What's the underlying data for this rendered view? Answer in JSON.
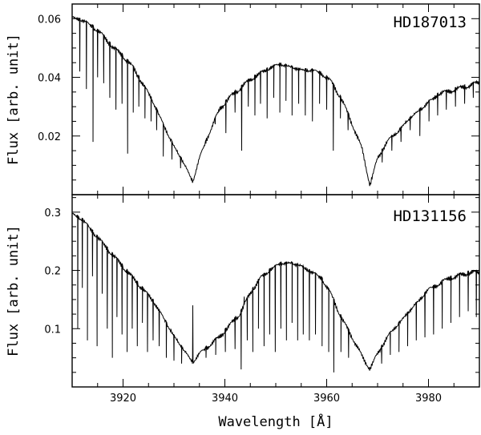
{
  "chart_data": [
    {
      "type": "line",
      "title": "HD187013",
      "xlabel": "",
      "ylabel": "Flux [arb. unit]",
      "xlim": [
        3910,
        3990
      ],
      "ylim": [
        0.0,
        0.065
      ],
      "xticks": [
        3920,
        3940,
        3960,
        3980
      ],
      "xtick_labels": [],
      "yticks": [
        0.02,
        0.04,
        0.06
      ],
      "ytick_labels": [
        "0.02",
        "0.04",
        "0.06"
      ],
      "grid": false,
      "series": [
        {
          "x": [
            3910,
            3912,
            3914,
            3916,
            3918,
            3920,
            3922,
            3924,
            3926,
            3928,
            3930,
            3932,
            3933.7,
            3935,
            3937,
            3939,
            3941,
            3943,
            3945,
            3947,
            3949,
            3951,
            3953,
            3955,
            3957,
            3959,
            3961,
            3963,
            3965,
            3967,
            3968.5,
            3970,
            3972,
            3974,
            3976,
            3978,
            3980,
            3982,
            3984,
            3986,
            3988,
            3990
          ],
          "y": [
            0.061,
            0.06,
            0.058,
            0.055,
            0.051,
            0.048,
            0.044,
            0.038,
            0.032,
            0.024,
            0.017,
            0.011,
            0.005,
            0.013,
            0.022,
            0.03,
            0.034,
            0.037,
            0.04,
            0.042,
            0.044,
            0.045,
            0.044,
            0.043,
            0.043,
            0.042,
            0.039,
            0.033,
            0.025,
            0.016,
            0.004,
            0.013,
            0.019,
            0.022,
            0.026,
            0.029,
            0.032,
            0.035,
            0.036,
            0.037,
            0.038,
            0.039
          ]
        }
      ],
      "absorption_lines": [
        {
          "x": 3911.5,
          "y": 0.042
        },
        {
          "x": 3912.8,
          "y": 0.036
        },
        {
          "x": 3914.1,
          "y": 0.018
        },
        {
          "x": 3915.0,
          "y": 0.04
        },
        {
          "x": 3916.2,
          "y": 0.038
        },
        {
          "x": 3917.4,
          "y": 0.033
        },
        {
          "x": 3918.6,
          "y": 0.029
        },
        {
          "x": 3919.8,
          "y": 0.031
        },
        {
          "x": 3920.9,
          "y": 0.014
        },
        {
          "x": 3922.0,
          "y": 0.028
        },
        {
          "x": 3923.1,
          "y": 0.03
        },
        {
          "x": 3924.3,
          "y": 0.026
        },
        {
          "x": 3925.5,
          "y": 0.025
        },
        {
          "x": 3926.6,
          "y": 0.022
        },
        {
          "x": 3927.9,
          "y": 0.013
        },
        {
          "x": 3929.6,
          "y": 0.012
        },
        {
          "x": 3931.3,
          "y": 0.009
        },
        {
          "x": 3936.3,
          "y": 0.018
        },
        {
          "x": 3938.1,
          "y": 0.024
        },
        {
          "x": 3940.2,
          "y": 0.021
        },
        {
          "x": 3942.0,
          "y": 0.028
        },
        {
          "x": 3943.3,
          "y": 0.015
        },
        {
          "x": 3944.6,
          "y": 0.03
        },
        {
          "x": 3945.9,
          "y": 0.027
        },
        {
          "x": 3947.0,
          "y": 0.031
        },
        {
          "x": 3948.3,
          "y": 0.026
        },
        {
          "x": 3949.6,
          "y": 0.033
        },
        {
          "x": 3950.8,
          "y": 0.028
        },
        {
          "x": 3952.0,
          "y": 0.032
        },
        {
          "x": 3953.2,
          "y": 0.027
        },
        {
          "x": 3954.5,
          "y": 0.031
        },
        {
          "x": 3955.8,
          "y": 0.027
        },
        {
          "x": 3957.2,
          "y": 0.025
        },
        {
          "x": 3958.6,
          "y": 0.031
        },
        {
          "x": 3960.0,
          "y": 0.029
        },
        {
          "x": 3961.3,
          "y": 0.015
        },
        {
          "x": 3962.7,
          "y": 0.026
        },
        {
          "x": 3964.2,
          "y": 0.022
        },
        {
          "x": 3970.9,
          "y": 0.011
        },
        {
          "x": 3972.8,
          "y": 0.015
        },
        {
          "x": 3974.6,
          "y": 0.018
        },
        {
          "x": 3976.4,
          "y": 0.022
        },
        {
          "x": 3978.3,
          "y": 0.02
        },
        {
          "x": 3980.1,
          "y": 0.025
        },
        {
          "x": 3981.8,
          "y": 0.027
        },
        {
          "x": 3983.5,
          "y": 0.029
        },
        {
          "x": 3985.3,
          "y": 0.03
        },
        {
          "x": 3987.1,
          "y": 0.031
        },
        {
          "x": 3988.8,
          "y": 0.033
        }
      ]
    },
    {
      "type": "line",
      "title": "HD131156",
      "xlabel": "Wavelength [Å]",
      "ylabel": "Flux [arb. unit]",
      "xlim": [
        3910,
        3990
      ],
      "ylim": [
        0.0,
        0.33
      ],
      "xticks": [
        3920,
        3940,
        3960,
        3980
      ],
      "xtick_labels": [
        "3920",
        "3940",
        "3960",
        "3980"
      ],
      "yticks": [
        0.1,
        0.2,
        0.3
      ],
      "ytick_labels": [
        "0.1",
        "0.2",
        "0.3"
      ],
      "grid": false,
      "series": [
        {
          "x": [
            3910,
            3912,
            3914,
            3916,
            3918,
            3920,
            3922,
            3924,
            3926,
            3928,
            3930,
            3932,
            3933.7,
            3935,
            3937,
            3939,
            3941,
            3943,
            3945,
            3947,
            3949,
            3951,
            3953,
            3955,
            3957,
            3959,
            3961,
            3963,
            3965,
            3967,
            3968.5,
            3970,
            3972,
            3974,
            3976,
            3978,
            3980,
            3982,
            3984,
            3986,
            3988,
            3990
          ],
          "y": [
            0.3,
            0.29,
            0.27,
            0.25,
            0.23,
            0.21,
            0.19,
            0.17,
            0.15,
            0.12,
            0.09,
            0.065,
            0.045,
            0.06,
            0.075,
            0.09,
            0.11,
            0.13,
            0.165,
            0.19,
            0.205,
            0.215,
            0.215,
            0.21,
            0.2,
            0.19,
            0.16,
            0.12,
            0.09,
            0.055,
            0.035,
            0.06,
            0.09,
            0.11,
            0.13,
            0.15,
            0.17,
            0.18,
            0.19,
            0.195,
            0.2,
            0.2
          ]
        }
      ],
      "absorption_lines": [
        {
          "x": 3911.1,
          "y": 0.1
        },
        {
          "x": 3912.0,
          "y": 0.17
        },
        {
          "x": 3913.0,
          "y": 0.08
        },
        {
          "x": 3914.0,
          "y": 0.19
        },
        {
          "x": 3914.9,
          "y": 0.07
        },
        {
          "x": 3915.9,
          "y": 0.16
        },
        {
          "x": 3916.9,
          "y": 0.1
        },
        {
          "x": 3917.9,
          "y": 0.05
        },
        {
          "x": 3918.8,
          "y": 0.12
        },
        {
          "x": 3919.8,
          "y": 0.09
        },
        {
          "x": 3920.8,
          "y": 0.06
        },
        {
          "x": 3921.8,
          "y": 0.1
        },
        {
          "x": 3922.8,
          "y": 0.07
        },
        {
          "x": 3923.8,
          "y": 0.11
        },
        {
          "x": 3924.8,
          "y": 0.06
        },
        {
          "x": 3925.9,
          "y": 0.08
        },
        {
          "x": 3927.1,
          "y": 0.07
        },
        {
          "x": 3928.5,
          "y": 0.05
        },
        {
          "x": 3930.0,
          "y": 0.045
        },
        {
          "x": 3931.5,
          "y": 0.04
        },
        {
          "x": 3936.3,
          "y": 0.05
        },
        {
          "x": 3938.2,
          "y": 0.055
        },
        {
          "x": 3940.1,
          "y": 0.06
        },
        {
          "x": 3942.0,
          "y": 0.065
        },
        {
          "x": 3943.2,
          "y": 0.03
        },
        {
          "x": 3944.4,
          "y": 0.08
        },
        {
          "x": 3945.5,
          "y": 0.06
        },
        {
          "x": 3946.6,
          "y": 0.1
        },
        {
          "x": 3947.7,
          "y": 0.07
        },
        {
          "x": 3948.8,
          "y": 0.09
        },
        {
          "x": 3949.9,
          "y": 0.06
        },
        {
          "x": 3951.0,
          "y": 0.1
        },
        {
          "x": 3952.1,
          "y": 0.08
        },
        {
          "x": 3953.2,
          "y": 0.11
        },
        {
          "x": 3954.3,
          "y": 0.08
        },
        {
          "x": 3955.4,
          "y": 0.09
        },
        {
          "x": 3956.6,
          "y": 0.08
        },
        {
          "x": 3957.8,
          "y": 0.09
        },
        {
          "x": 3959.1,
          "y": 0.07
        },
        {
          "x": 3960.4,
          "y": 0.06
        },
        {
          "x": 3961.4,
          "y": 0.025
        },
        {
          "x": 3962.8,
          "y": 0.06
        },
        {
          "x": 3964.3,
          "y": 0.05
        },
        {
          "x": 3970.8,
          "y": 0.04
        },
        {
          "x": 3972.5,
          "y": 0.055
        },
        {
          "x": 3974.2,
          "y": 0.06
        },
        {
          "x": 3975.9,
          "y": 0.07
        },
        {
          "x": 3977.6,
          "y": 0.08
        },
        {
          "x": 3979.3,
          "y": 0.085
        },
        {
          "x": 3981.0,
          "y": 0.09
        },
        {
          "x": 3982.7,
          "y": 0.1
        },
        {
          "x": 3984.4,
          "y": 0.11
        },
        {
          "x": 3986.1,
          "y": 0.12
        },
        {
          "x": 3987.8,
          "y": 0.13
        },
        {
          "x": 3989.4,
          "y": 0.12
        }
      ],
      "emission_spikes": [
        {
          "x": 3933.7,
          "y": 0.14
        },
        {
          "x": 3943.8,
          "y": 0.155
        }
      ]
    }
  ]
}
